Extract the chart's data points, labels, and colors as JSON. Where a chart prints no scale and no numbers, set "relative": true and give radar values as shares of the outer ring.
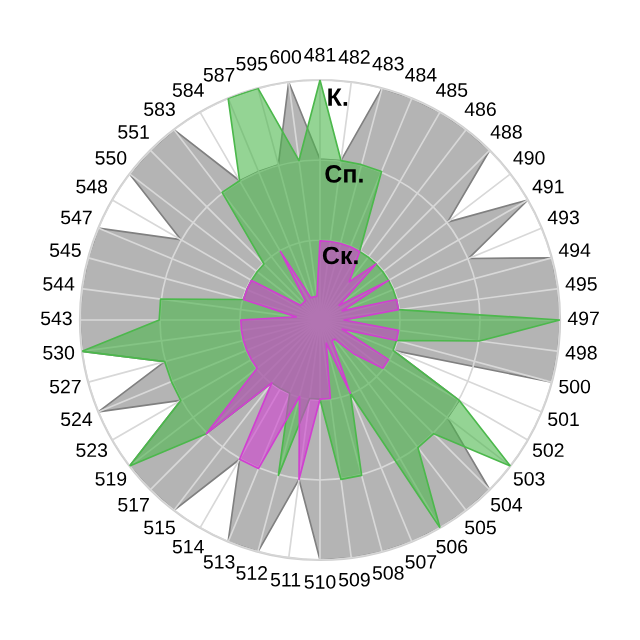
{
  "chart_data": {
    "type": "radar",
    "relative": true,
    "grid": true,
    "legend": false,
    "marker": "none",
    "categories": [
      "481",
      "482",
      "483",
      "484",
      "485",
      "486",
      "488",
      "490",
      "491",
      "493",
      "494",
      "495",
      "497",
      "498",
      "500",
      "501",
      "502",
      "503",
      "504",
      "505",
      "506",
      "507",
      "508",
      "509",
      "510",
      "511",
      "512",
      "513",
      "514",
      "515",
      "517",
      "519",
      "523",
      "524",
      "527",
      "530",
      "543",
      "544",
      "545",
      "547",
      "548",
      "550",
      "551",
      "583",
      "584",
      "587",
      "595",
      "600"
    ],
    "series": [
      {
        "name": "К.",
        "color": "#b4b4b4",
        "values": [
          0.67,
          0.67,
          1,
          1,
          1,
          1,
          1,
          0.67,
          1,
          0.67,
          1,
          1,
          1,
          1,
          1,
          0.33,
          0.67,
          0.67,
          1,
          1,
          1,
          1,
          1,
          1,
          1,
          0.67,
          1,
          1,
          0.67,
          1,
          1,
          1,
          0.67,
          1,
          0.67,
          1,
          1,
          1,
          1,
          1,
          0.67,
          1,
          1,
          1,
          0.67,
          0.67,
          0.67,
          1
        ]
      },
      {
        "name": "Сп.",
        "color": "#4cb84c",
        "values": [
          1,
          0.67,
          0.67,
          0.67,
          0.33,
          0.33,
          0.33,
          0.33,
          0.33,
          0.33,
          0.33,
          0.33,
          1,
          0.67,
          0.33,
          0.33,
          0.67,
          1,
          0.67,
          0.67,
          1,
          0.33,
          0.67,
          0.67,
          0.33,
          0.33,
          0.67,
          0.33,
          0.33,
          0.33,
          0.67,
          1,
          0.67,
          0.67,
          0.67,
          1,
          0.67,
          0.67,
          0.33,
          0.33,
          0.33,
          0.33,
          0.33,
          0.67,
          0.67,
          1,
          1,
          0.67
        ]
      },
      {
        "name": "Ск.",
        "color": "#d040d0",
        "values": [
          0.33,
          0.33,
          0.33,
          0.33,
          0.33,
          0.2,
          0.33,
          0.1,
          0.33,
          0.1,
          0.33,
          0.33,
          0.1,
          0.33,
          0.33,
          0.1,
          0.33,
          0.33,
          0.2,
          0.1,
          0.1,
          0.33,
          0.1,
          0.33,
          0.33,
          0.67,
          0.33,
          0.67,
          0.67,
          0.33,
          0.67,
          0.33,
          0.33,
          0.33,
          0.33,
          0.33,
          0.33,
          0.1,
          0.33,
          0.33,
          0.33,
          0.1,
          0.1,
          0.1,
          0.33,
          0.1,
          0.1,
          0.1
        ]
      }
    ]
  }
}
